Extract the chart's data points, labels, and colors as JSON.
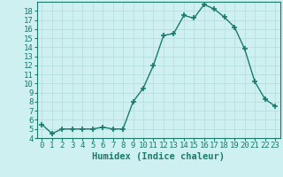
{
  "title": "",
  "xlabel": "Humidex (Indice chaleur)",
  "ylabel": "",
  "x": [
    0,
    1,
    2,
    3,
    4,
    5,
    6,
    7,
    8,
    9,
    10,
    11,
    12,
    13,
    14,
    15,
    16,
    17,
    18,
    19,
    20,
    21,
    22,
    23
  ],
  "y": [
    5.5,
    4.5,
    5.0,
    5.0,
    5.0,
    5.0,
    5.2,
    5.0,
    5.0,
    8.0,
    9.5,
    12.0,
    15.3,
    15.5,
    17.5,
    17.2,
    18.7,
    18.2,
    17.3,
    16.2,
    13.8,
    10.2,
    8.3,
    7.5
  ],
  "line_color": "#1a7a6e",
  "marker": "+",
  "marker_size": 4,
  "bg_color": "#cef0f0",
  "grid_color": "#b8dede",
  "xlim": [
    -0.5,
    23.5
  ],
  "ylim": [
    4,
    19
  ],
  "yticks": [
    4,
    5,
    6,
    7,
    8,
    9,
    10,
    11,
    12,
    13,
    14,
    15,
    16,
    17,
    18
  ],
  "xticks": [
    0,
    1,
    2,
    3,
    4,
    5,
    6,
    7,
    8,
    9,
    10,
    11,
    12,
    13,
    14,
    15,
    16,
    17,
    18,
    19,
    20,
    21,
    22,
    23
  ],
  "tick_color": "#1a7a6e",
  "label_fontsize": 6.5,
  "xlabel_fontsize": 7.5
}
